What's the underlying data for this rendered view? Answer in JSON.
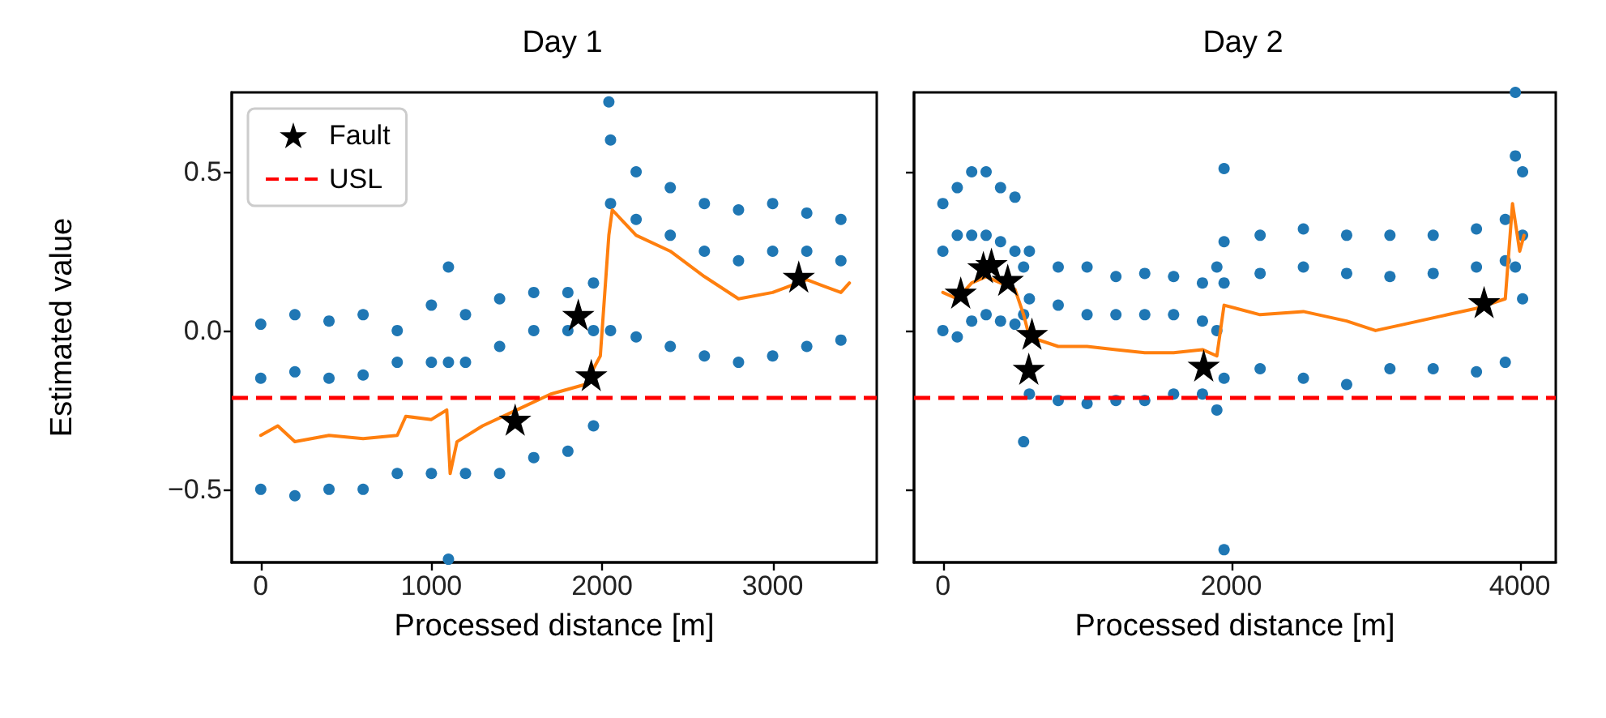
{
  "chart_data": [
    {
      "type": "scatter",
      "title": "Day 1",
      "xlabel": "Processed distance [m]",
      "ylabel": "Estimated value",
      "xlim": [
        -170,
        3610
      ],
      "xticks": [
        0,
        1000,
        2000,
        3000
      ],
      "ylim": [
        -0.73,
        0.75
      ],
      "yticks": [
        {
          "value": -0.5,
          "label": "−0.5"
        },
        {
          "value": 0,
          "label": "0.0"
        },
        0.5
      ],
      "grid": false,
      "legend": "top left",
      "ref_lines": [
        {
          "axis": "y",
          "value": -0.21,
          "label": "USL",
          "color": "#ff0000",
          "line_style": "dashed"
        }
      ],
      "series": [
        {
          "color": "#1f77b4",
          "marker": "circle",
          "x": [
            0,
            200,
            400,
            600,
            800,
            1000,
            1100,
            1200,
            1400,
            1600,
            1800,
            1950,
            2050,
            2200,
            2400,
            2600,
            2800,
            3000,
            3200,
            3400,
            0,
            200,
            400,
            600,
            800,
            1000,
            1100,
            1200,
            1400,
            1600,
            1800,
            1950,
            2050,
            2200,
            2400,
            2600,
            2800,
            3000,
            3200,
            3400,
            0,
            200,
            400,
            600,
            800,
            1000,
            1100,
            1200,
            1400,
            1600,
            1800,
            1950,
            2050,
            2200,
            2400,
            2600,
            2800,
            3000,
            3200,
            3400,
            2040
          ],
          "values": [
            0.02,
            0.05,
            0.03,
            0.05,
            0.0,
            0.08,
            0.2,
            0.05,
            0.1,
            0.12,
            0.12,
            0.15,
            0.6,
            0.5,
            0.45,
            0.4,
            0.38,
            0.4,
            0.37,
            0.35,
            -0.15,
            -0.13,
            -0.15,
            -0.14,
            -0.1,
            -0.1,
            -0.1,
            -0.1,
            -0.05,
            0.0,
            0.0,
            0.0,
            0.4,
            0.35,
            0.3,
            0.25,
            0.22,
            0.25,
            0.25,
            0.22,
            -0.5,
            -0.52,
            -0.5,
            -0.5,
            -0.45,
            -0.45,
            -0.72,
            -0.45,
            -0.45,
            -0.4,
            -0.38,
            -0.3,
            0.0,
            -0.02,
            -0.05,
            -0.08,
            -0.1,
            -0.08,
            -0.05,
            -0.03,
            0.72
          ]
        },
        {
          "type": "line",
          "color": "#ff7f0e",
          "marker": "none",
          "x": [
            0,
            100,
            200,
            400,
            600,
            800,
            850,
            1000,
            1090,
            1110,
            1150,
            1300,
            1500,
            1700,
            1900,
            1990,
            2040,
            2060,
            2200,
            2400,
            2600,
            2800,
            3000,
            3200,
            3400,
            3450
          ],
          "values": [
            -0.33,
            -0.3,
            -0.35,
            -0.33,
            -0.34,
            -0.33,
            -0.27,
            -0.28,
            -0.25,
            -0.45,
            -0.35,
            -0.3,
            -0.25,
            -0.2,
            -0.17,
            -0.08,
            0.3,
            0.38,
            0.3,
            0.25,
            0.17,
            0.1,
            0.12,
            0.16,
            0.12,
            0.15
          ]
        },
        {
          "name": "Fault",
          "color": "#000000",
          "marker": "star",
          "x": [
            1491,
            1861,
            1937,
            3153
          ],
          "values": [
            -0.28,
            0.05,
            -0.14,
            0.17
          ]
        }
      ]
    },
    {
      "type": "scatter",
      "title": "Day 2",
      "xlabel": "Processed distance [m]",
      "xlim": [
        -200,
        4250
      ],
      "xticks": [
        0,
        2000,
        4000
      ],
      "ylim": [
        -0.73,
        0.75
      ],
      "yticks": [
        -0.5,
        0,
        0.5
      ],
      "tick_labels": "x",
      "grid": false,
      "ref_lines": [
        {
          "axis": "y",
          "value": -0.21,
          "color": "#ff0000",
          "line_style": "dashed"
        }
      ],
      "series": [
        {
          "color": "#1f77b4",
          "marker": "circle",
          "x": [
            0,
            100,
            200,
            300,
            400,
            500,
            560,
            600,
            800,
            1000,
            1200,
            1400,
            1600,
            1800,
            1900,
            1950,
            2200,
            2500,
            2800,
            3100,
            3400,
            3700,
            3900,
            3970,
            4020,
            0,
            100,
            200,
            300,
            400,
            500,
            560,
            600,
            800,
            1000,
            1200,
            1400,
            1600,
            1800,
            1900,
            1950,
            2200,
            2500,
            2800,
            3100,
            3400,
            3700,
            3900,
            3970,
            4020,
            0,
            100,
            200,
            300,
            400,
            500,
            560,
            600,
            800,
            1000,
            1200,
            1400,
            1600,
            1800,
            1900,
            1950,
            2200,
            2500,
            2800,
            3100,
            3400,
            3700,
            3900,
            3970,
            4020,
            1950,
            1950
          ],
          "values": [
            0.4,
            0.45,
            0.5,
            0.5,
            0.45,
            0.42,
            0.2,
            0.25,
            0.2,
            0.2,
            0.17,
            0.18,
            0.17,
            0.15,
            0.2,
            0.28,
            0.3,
            0.32,
            0.3,
            0.3,
            0.3,
            0.32,
            0.35,
            0.75,
            0.5,
            0.25,
            0.3,
            0.3,
            0.3,
            0.28,
            0.25,
            0.05,
            0.1,
            0.08,
            0.05,
            0.05,
            0.05,
            0.05,
            0.03,
            0.0,
            0.15,
            0.18,
            0.2,
            0.18,
            0.17,
            0.18,
            0.2,
            0.22,
            0.55,
            0.3,
            0.0,
            -0.02,
            0.03,
            0.05,
            0.03,
            0.02,
            -0.35,
            -0.2,
            -0.22,
            -0.23,
            -0.22,
            -0.22,
            -0.2,
            -0.2,
            -0.25,
            -0.15,
            -0.12,
            -0.15,
            -0.17,
            -0.12,
            -0.12,
            -0.13,
            -0.1,
            0.2,
            0.1,
            -0.69,
            0.51
          ]
        },
        {
          "type": "line",
          "color": "#ff7f0e",
          "marker": "none",
          "x": [
            0,
            100,
            200,
            300,
            400,
            500,
            560,
            600,
            800,
            1000,
            1200,
            1400,
            1600,
            1800,
            1900,
            1950,
            2200,
            2500,
            2800,
            3000,
            3200,
            3500,
            3700,
            3900,
            3950,
            4000,
            4030
          ],
          "values": [
            0.12,
            0.1,
            0.15,
            0.17,
            0.15,
            0.13,
            0.05,
            -0.02,
            -0.05,
            -0.05,
            -0.06,
            -0.07,
            -0.07,
            -0.06,
            -0.08,
            0.08,
            0.05,
            0.06,
            0.03,
            0.0,
            0.02,
            0.05,
            0.07,
            0.1,
            0.4,
            0.25,
            0.3
          ]
        },
        {
          "color": "#000000",
          "marker": "star",
          "x": [
            124,
            281,
            337,
            450,
            596,
            618,
            1809,
            3753
          ],
          "values": [
            0.12,
            0.2,
            0.21,
            0.16,
            -0.12,
            -0.01,
            -0.11,
            0.09
          ]
        }
      ]
    }
  ]
}
